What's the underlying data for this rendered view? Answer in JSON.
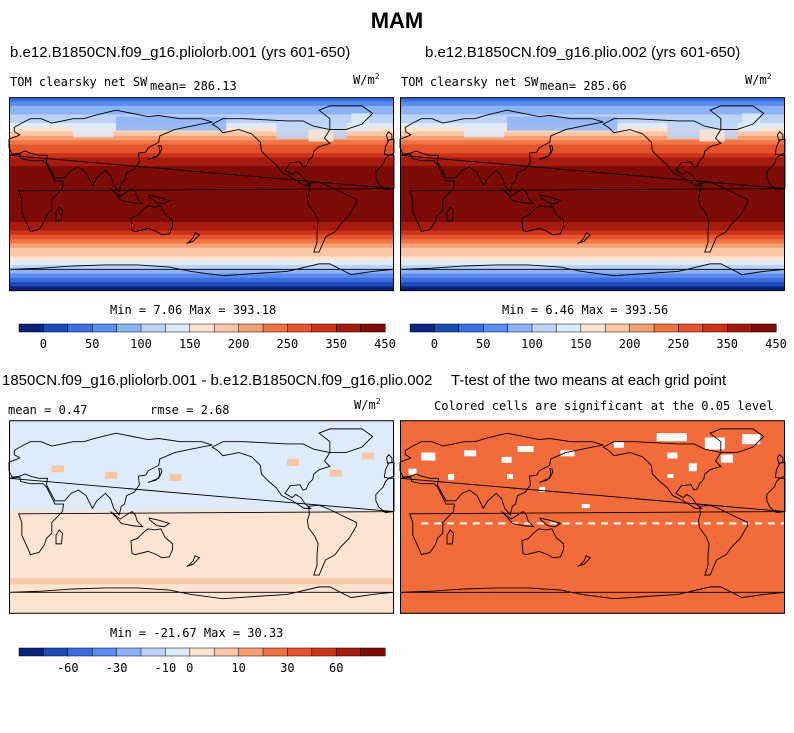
{
  "title": "MAM",
  "colors": {
    "sw_scale": [
      "#08217a",
      "#1c4bb8",
      "#3a6ee0",
      "#5b8cf0",
      "#8db3f5",
      "#bcd3f7",
      "#deebfa",
      "#fde4d2",
      "#fac7a6",
      "#f59f73",
      "#ef7547",
      "#e5532c",
      "#cc3318",
      "#a51b0e",
      "#7d0b06"
    ],
    "diff_scale": [
      "#08217a",
      "#1c4bb8",
      "#3a6ee0",
      "#5b8cf0",
      "#8db3f5",
      "#bcd3f7",
      "#deebfa",
      "#fde4d2",
      "#fac7a6",
      "#f59f73",
      "#ef7547",
      "#e5532c",
      "#cc3318",
      "#a51b0e",
      "#7d0b06"
    ],
    "sig_fill": "#f26b3a",
    "coast": "#000000"
  },
  "panels": {
    "p1": {
      "case": "b.e12.B1850CN.f09_g16.pliolorb.001 (yrs 601-650)",
      "var": "TOM clearsky net SW",
      "mean": "mean= 286.13",
      "units": "W/m",
      "units_sup": "2",
      "minmax": "Min =   7.06 Max = 393.18"
    },
    "p2": {
      "case": "b.e12.B1850CN.f09_g16.plio.002 (yrs 601-650)",
      "var": "TOM clearsky net SW",
      "mean": "mean= 285.66",
      "units": "W/m",
      "units_sup": "2",
      "minmax": "Min =   6.46 Max = 393.56"
    },
    "p3": {
      "case": "1850CN.f09_g16.pliolorb.001 - b.e12.B1850CN.f09_g16.plio.002",
      "mean": "mean =   0.47",
      "rmse": "rmse =   2.68",
      "units": "W/m",
      "units_sup": "2",
      "minmax": "Min = -21.67 Max =  30.33"
    },
    "p4": {
      "title": "T-test of the two means at each grid point",
      "subtitle": "Colored cells are significant at the 0.05 level"
    }
  },
  "chart_data": [
    {
      "type": "heatmap",
      "name": "map-pliolorb-001",
      "title": "b.e12.B1850CN.f09_g16.pliolorb.001 (yrs 601-650)",
      "variable": "TOM clearsky net SW",
      "units": "W/m2",
      "mean": 286.13,
      "min": 7.06,
      "max": 393.18,
      "zonal_profile": {
        "lat": [
          -90,
          -75,
          -60,
          -45,
          -30,
          -15,
          0,
          15,
          30,
          45,
          60,
          75,
          90
        ],
        "value": [
          15,
          80,
          180,
          260,
          340,
          375,
          385,
          375,
          345,
          270,
          175,
          120,
          60
        ]
      },
      "colorbar_levels": [
        0,
        25,
        50,
        75,
        100,
        125,
        150,
        175,
        200,
        225,
        250,
        275,
        300,
        325,
        350,
        375
      ],
      "colorbar_labels": [
        "0",
        "50",
        "100",
        "150",
        "200",
        "250",
        "350",
        "450"
      ]
    },
    {
      "type": "heatmap",
      "name": "map-plio-002",
      "title": "b.e12.B1850CN.f09_g16.plio.002 (yrs 601-650)",
      "variable": "TOM clearsky net SW",
      "units": "W/m2",
      "mean": 285.66,
      "min": 6.46,
      "max": 393.56,
      "zonal_profile": {
        "lat": [
          -90,
          -75,
          -60,
          -45,
          -30,
          -15,
          0,
          15,
          30,
          45,
          60,
          75,
          90
        ],
        "value": [
          15,
          80,
          180,
          260,
          340,
          375,
          385,
          375,
          345,
          270,
          175,
          120,
          60
        ]
      },
      "colorbar_levels": [
        0,
        25,
        50,
        75,
        100,
        125,
        150,
        175,
        200,
        225,
        250,
        275,
        300,
        325,
        350,
        375
      ],
      "colorbar_labels": [
        "0",
        "50",
        "100",
        "150",
        "200",
        "250",
        "350",
        "450"
      ]
    },
    {
      "type": "heatmap",
      "name": "map-difference",
      "units": "W/m2",
      "mean": 0.47,
      "rmse": 2.68,
      "min": -21.67,
      "max": 30.33,
      "zonal_profile": {
        "lat": [
          -90,
          -60,
          -30,
          -20,
          0,
          20,
          60,
          90
        ],
        "value": [
          2,
          3,
          2,
          2,
          0.5,
          -1,
          -1,
          -3
        ]
      },
      "colorbar_levels": [
        -70,
        -60,
        -50,
        -40,
        -30,
        -20,
        -10,
        0,
        5,
        10,
        20,
        30,
        40,
        50,
        60,
        70
      ],
      "colorbar_labels": [
        "-60",
        "-30",
        "-10",
        "0",
        "10",
        "30",
        "60"
      ]
    },
    {
      "type": "heatmap",
      "name": "map-ttest",
      "title": "T-test of the two means at each grid point",
      "subtitle": "Colored cells are significant at the 0.05 level",
      "significance_level": 0.05
    }
  ]
}
